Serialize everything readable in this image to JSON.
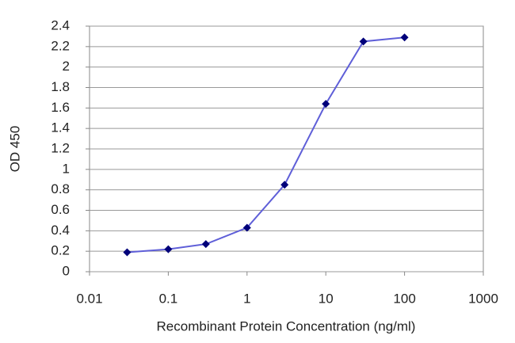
{
  "chart_data": {
    "type": "line",
    "xlabel": "Recombinant Protein Concentration (ng/ml)",
    "ylabel": "OD 450",
    "x": [
      0.03,
      0.1,
      0.3,
      1,
      3,
      10,
      30,
      100
    ],
    "values": [
      0.19,
      0.22,
      0.27,
      0.43,
      0.85,
      1.64,
      2.25,
      2.29
    ],
    "color": "#5f5fd8",
    "marker_color": "#00007a",
    "xscale": "log",
    "xlim": [
      0.01,
      1000
    ],
    "xticks": [
      0.01,
      0.1,
      1,
      10,
      100,
      1000
    ],
    "ylim": [
      0,
      2.4
    ],
    "yticks": [
      0,
      0.2,
      0.4,
      0.6,
      0.8,
      1,
      1.2,
      1.4,
      1.6,
      1.8,
      2,
      2.2,
      2.4
    ],
    "grid": true
  }
}
